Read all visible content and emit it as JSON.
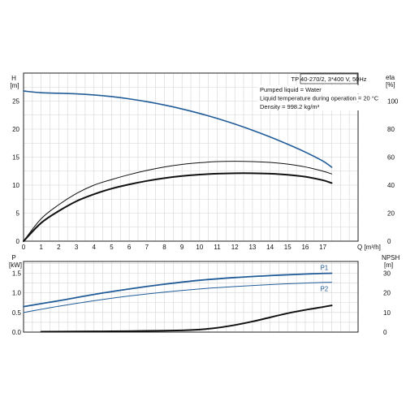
{
  "chart_data": [
    {
      "id": "top",
      "type": "line",
      "box_text": "TP 40-270/2, 3*400 V, 50Hz",
      "info_lines": [
        "Pumped liquid = Water",
        "Liquid temperature during operation = 20 °C",
        "Density = 998.2 kg/m³"
      ],
      "left_axis": {
        "label_line1": "H",
        "label_line2": "[m]",
        "ticks": [
          0,
          5,
          10,
          15,
          20,
          25
        ],
        "range": [
          0,
          30
        ]
      },
      "right_axis": {
        "label_line1": "eta",
        "label_line2": "[%]",
        "ticks": [
          0,
          20,
          40,
          60,
          80,
          100
        ],
        "range": [
          0,
          120
        ]
      },
      "x_axis": {
        "label": "Q [m³/h]",
        "ticks": [
          0,
          1,
          2,
          3,
          4,
          5,
          6,
          7,
          8,
          9,
          10,
          11,
          12,
          13,
          14,
          15,
          16,
          17
        ],
        "range": [
          0,
          19
        ]
      },
      "grid": true,
      "series": [
        {
          "axis": "left",
          "color": "#215c98",
          "width": 1.6,
          "x": [
            0,
            1,
            2,
            3,
            4,
            5,
            6,
            7,
            8,
            9,
            10,
            11,
            12,
            13,
            14,
            15,
            16,
            17,
            17.5
          ],
          "y": [
            26.8,
            26.5,
            26.4,
            26.3,
            26.1,
            25.8,
            25.4,
            24.9,
            24.3,
            23.6,
            22.8,
            21.9,
            20.9,
            19.8,
            18.6,
            17.3,
            15.9,
            14.3,
            13.2
          ]
        },
        {
          "axis": "right",
          "color": "#111111",
          "width": 1.0,
          "x": [
            0,
            1,
            2,
            3,
            4,
            5,
            6,
            7,
            8,
            9,
            10,
            11,
            12,
            13,
            14,
            15,
            16,
            17,
            17.5
          ],
          "y": [
            0,
            16,
            26,
            34,
            40,
            44,
            47.5,
            50.5,
            53,
            54.8,
            56,
            56.8,
            57,
            56.8,
            56.2,
            55,
            53,
            50,
            48
          ]
        },
        {
          "axis": "right",
          "color": "#111111",
          "width": 2.0,
          "x": [
            0,
            1,
            2,
            3,
            4,
            5,
            6,
            7,
            8,
            9,
            10,
            11,
            12,
            13,
            14,
            15,
            16,
            17,
            17.5
          ],
          "y": [
            0,
            13,
            21.5,
            28.5,
            33.5,
            37.5,
            40.5,
            43,
            45,
            46.5,
            47.5,
            48.2,
            48.5,
            48.5,
            48.2,
            47.4,
            46,
            43.5,
            41.5
          ]
        }
      ]
    },
    {
      "id": "bottom",
      "type": "line",
      "left_axis": {
        "label_line1": "P",
        "label_line2": "[kW]",
        "ticks": [
          0.0,
          0.5,
          1.0,
          1.5
        ],
        "tick_labels": [
          "0.0",
          "0.5",
          "1.0",
          "1.5"
        ],
        "range": [
          0,
          1.8
        ]
      },
      "right_axis": {
        "label_line1": "NPSH",
        "label_line2": "[m]",
        "ticks": [
          0,
          10,
          20,
          30
        ],
        "range": [
          0,
          36
        ]
      },
      "x_axis": {
        "range": [
          0,
          19
        ]
      },
      "grid": true,
      "series": [
        {
          "name": "P1",
          "axis": "left",
          "color": "#215c98",
          "width": 1.8,
          "x": [
            0,
            2,
            4,
            6,
            8,
            10,
            12,
            14,
            16,
            17.5
          ],
          "y": [
            0.65,
            0.8,
            0.96,
            1.1,
            1.22,
            1.32,
            1.39,
            1.44,
            1.48,
            1.5
          ]
        },
        {
          "name": "P2",
          "axis": "left",
          "color": "#215c98",
          "width": 1.0,
          "x": [
            0,
            2,
            4,
            6,
            8,
            10,
            12,
            14,
            16,
            17.5
          ],
          "y": [
            0.5,
            0.66,
            0.8,
            0.92,
            1.02,
            1.1,
            1.16,
            1.21,
            1.25,
            1.27
          ]
        },
        {
          "axis": "right",
          "color": "#111111",
          "width": 2.0,
          "x": [
            1,
            3,
            5,
            7,
            9,
            10,
            11,
            12,
            13,
            14,
            15,
            16,
            17,
            17.5
          ],
          "y": [
            0.2,
            0.3,
            0.4,
            0.6,
            0.9,
            1.3,
            2.2,
            3.6,
            5.4,
            7.5,
            9.6,
            11.3,
            12.8,
            13.6
          ]
        }
      ]
    }
  ]
}
